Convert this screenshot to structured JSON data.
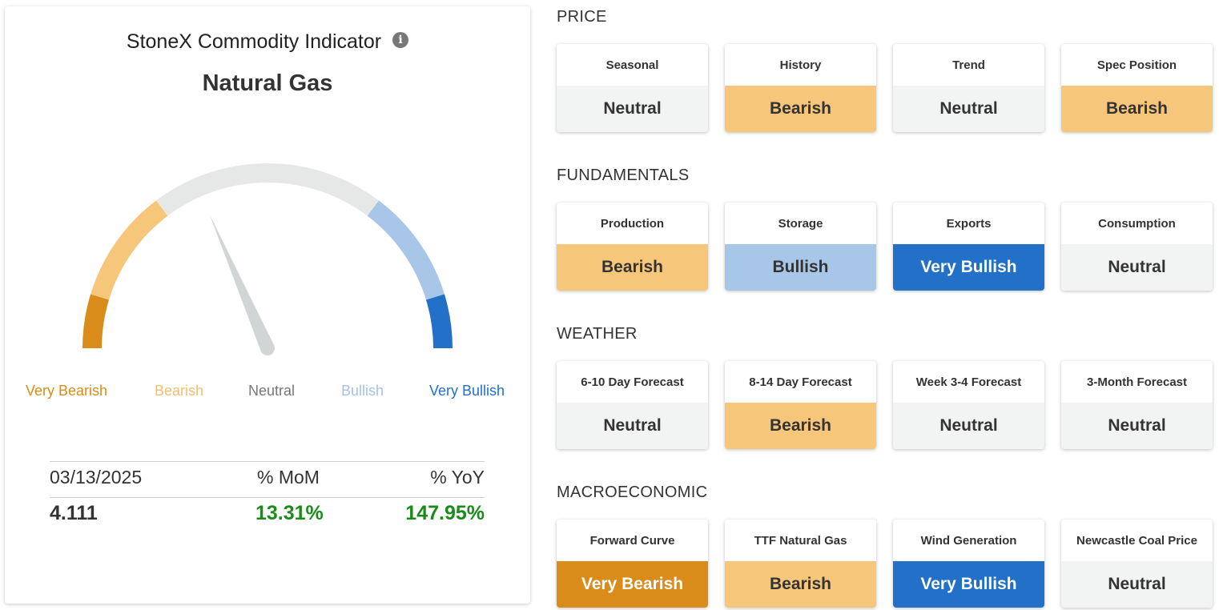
{
  "indicator": {
    "title": "StoneX Commodity Indicator",
    "info_icon": "i",
    "commodity": "Natural Gas"
  },
  "gauge": {
    "needle_position": "neutral",
    "needle_value": 0.37,
    "segments": [
      {
        "name": "Very Bearish",
        "color": "#d98c19"
      },
      {
        "name": "Bearish",
        "color": "#f6c77b"
      },
      {
        "name": "Neutral",
        "color": "#e6e8e8"
      },
      {
        "name": "Bullish",
        "color": "#a8c6e8"
      },
      {
        "name": "Very Bullish",
        "color": "#2270c8"
      }
    ],
    "labels": [
      "Very Bearish",
      "Bearish",
      "Neutral",
      "Bullish",
      "Very Bullish"
    ]
  },
  "stats": {
    "date": "03/13/2025",
    "mom_label": "% MoM",
    "yoy_label": "% YoY",
    "price": "4.111",
    "mom": "13.31%",
    "yoy": "147.95%",
    "positive_color": "#1a8c1a"
  },
  "sections": [
    {
      "title": "PRICE",
      "tiles": [
        {
          "name": "Seasonal",
          "status": "Neutral",
          "class": "st-neutral"
        },
        {
          "name": "History",
          "status": "Bearish",
          "class": "st-bearish"
        },
        {
          "name": "Trend",
          "status": "Neutral",
          "class": "st-neutral"
        },
        {
          "name": "Spec Position",
          "status": "Bearish",
          "class": "st-bearish"
        }
      ]
    },
    {
      "title": "FUNDAMENTALS",
      "tiles": [
        {
          "name": "Production",
          "status": "Bearish",
          "class": "st-bearish"
        },
        {
          "name": "Storage",
          "status": "Bullish",
          "class": "st-bullish"
        },
        {
          "name": "Exports",
          "status": "Very Bullish",
          "class": "st-very-bullish"
        },
        {
          "name": "Consumption",
          "status": "Neutral",
          "class": "st-neutral"
        }
      ]
    },
    {
      "title": "WEATHER",
      "tiles": [
        {
          "name": "6-10 Day Forecast",
          "status": "Neutral",
          "class": "st-neutral"
        },
        {
          "name": "8-14 Day Forecast",
          "status": "Bearish",
          "class": "st-bearish"
        },
        {
          "name": "Week 3-4 Forecast",
          "status": "Neutral",
          "class": "st-neutral"
        },
        {
          "name": "3-Month Forecast",
          "status": "Neutral",
          "class": "st-neutral"
        }
      ]
    },
    {
      "title": "MACROECONOMIC",
      "tiles": [
        {
          "name": "Forward Curve",
          "status": "Very Bearish",
          "class": "st-very-bearish"
        },
        {
          "name": "TTF Natural Gas",
          "status": "Bearish",
          "class": "st-bearish"
        },
        {
          "name": "Wind Generation",
          "status": "Very Bullish",
          "class": "st-very-bullish"
        },
        {
          "name": "Newcastle Coal Price",
          "status": "Neutral",
          "class": "st-neutral"
        }
      ]
    }
  ]
}
